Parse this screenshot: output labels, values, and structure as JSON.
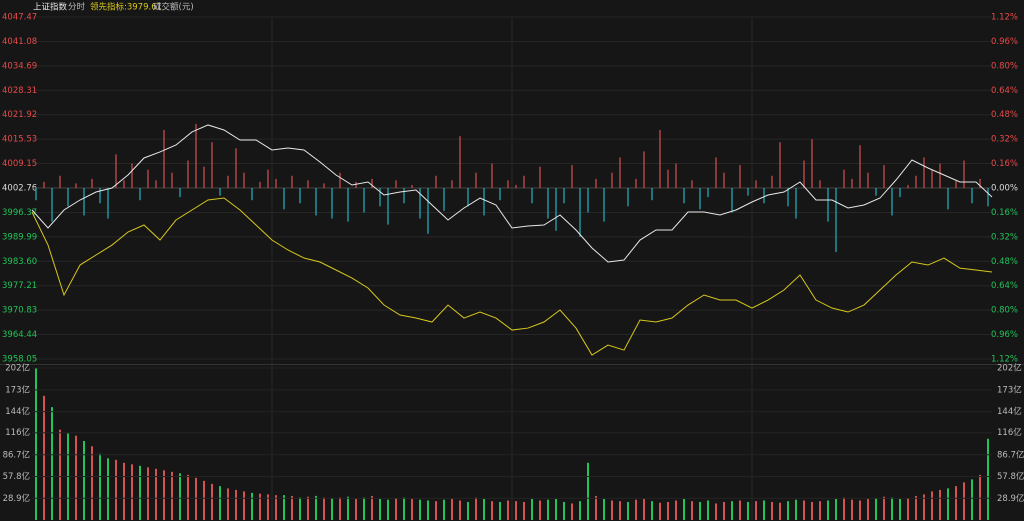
{
  "chart_data": {
    "type": "intraday",
    "header": [
      "上证指数",
      "分时",
      "领先指标:3979.61",
      "成交额(元)"
    ],
    "ylim": [
      3958.05,
      4047.47
    ],
    "yticks": [
      4047.47,
      4041.08,
      4034.69,
      4028.31,
      4021.92,
      4015.53,
      4009.15,
      4002.76,
      3996.37,
      3989.99,
      {
        "value": 3983.6,
        "label": "3983.60"
      },
      3977.21,
      3970.83,
      3964.44,
      3958.05
    ],
    "y2lim": [
      -1.12,
      1.12
    ],
    "y2ticks": [
      {
        "value": 1.12,
        "label": "1.12%"
      },
      {
        "value": 0.96,
        "label": "0.96%"
      },
      {
        "value": 0.8,
        "label": "0.80%"
      },
      {
        "value": 0.64,
        "label": "0.64%"
      },
      {
        "value": 0.48,
        "label": "0.48%"
      },
      {
        "value": 0.32,
        "label": "0.32%"
      },
      {
        "value": 0.16,
        "label": "0.16%"
      },
      {
        "value": 0,
        "label": "0.00%"
      },
      {
        "value": -0.16,
        "label": "0.16%"
      },
      {
        "value": -0.32,
        "label": "0.32%"
      },
      {
        "value": -0.48,
        "label": "0.48%"
      },
      {
        "value": -0.64,
        "label": "0.64%"
      },
      {
        "value": -0.8,
        "label": "0.80%"
      },
      {
        "value": -0.96,
        "label": "0.96%"
      },
      {
        "value": -1.12,
        "label": "1.12%"
      }
    ],
    "up_color": "#e84a4a",
    "down_color": "#22c35a",
    "grid": true,
    "series": [
      {
        "color": "#e8e8e8",
        "values": [
          3997.01,
          3992.3,
          3997.01,
          3999.62,
          4001.71,
          4002.76,
          4006.16,
          4010.61,
          4012.18,
          4014.01,
          4017.41,
          4019.24,
          4017.93,
          4015.31,
          4015.31,
          4012.7,
          4013.22,
          4012.7,
          4009.56,
          4006.16,
          4003.54,
          4004.33,
          4000.93,
          4001.71,
          4002.24,
          3998.31,
          3994.39,
          3997.53,
          4000.14,
          3998.31,
          3992.3,
          3992.82,
          3993.08,
          3995.7,
          3991.78,
          3987.07,
          3983.41,
          3983.93,
          3989.16,
          3991.78,
          3991.78,
          3996.48,
          3996.48,
          3995.7,
          3997.01,
          3999.1,
          4000.93,
          4001.71,
          4004.33,
          3999.62,
          3999.62,
          3997.53,
          3998.31,
          4000.14,
          4004.85,
          4010.08,
          4007.99,
          4006.16,
          4004.33,
          4004.33,
          4000.41
        ]
      },
      {
        "color": "#d8c81c",
        "values": [
          3996.48,
          3987.85,
          3974.78,
          3982.62,
          3985.24,
          3987.85,
          3991.25,
          3993.08,
          3989.16,
          3994.39,
          3997.01,
          3999.62,
          4000.14,
          3997.01,
          3993.08,
          3989.16,
          3986.55,
          3984.45,
          3983.41,
          3981.32,
          3979.22,
          3976.61,
          3972.16,
          3969.55,
          3968.76,
          3967.72,
          3972.16,
          3968.76,
          3970.33,
          3968.76,
          3965.62,
          3966.14,
          3967.72,
          3970.86,
          3966.14,
          3959.08,
          3961.7,
          3960.39,
          3968.24,
          3967.72,
          3968.76,
          3972.16,
          3974.78,
          3973.47,
          3973.47,
          3971.38,
          3973.47,
          3976.09,
          3980.01,
          3973.47,
          3971.38,
          3970.33,
          3972.16,
          3976.09,
          3980.01,
          3983.41,
          3982.62,
          3984.45,
          3981.8,
          3981.32,
          3980.8
        ]
      }
    ],
    "bars": {
      "axis": "y2",
      "up_color": "#d45252",
      "down_color": "#25b4c0",
      "values": [
        -0.08,
        0.04,
        -0.22,
        0.08,
        -0.12,
        0.03,
        -0.18,
        0.06,
        -0.1,
        -0.2,
        0.22,
        0.05,
        0.16,
        -0.08,
        0.12,
        0.05,
        0.38,
        0.1,
        -0.06,
        0.18,
        0.42,
        0.14,
        0.3,
        -0.05,
        0.08,
        0.26,
        0.1,
        -0.08,
        0.04,
        0.12,
        0.06,
        -0.14,
        0.08,
        -0.1,
        0.05,
        -0.18,
        0.03,
        -0.2,
        0.1,
        -0.22,
        0.04,
        -0.16,
        0.06,
        -0.12,
        -0.24,
        0.05,
        -0.1,
        0.02,
        -0.2,
        -0.3,
        0.08,
        -0.15,
        0.05,
        0.34,
        -0.12,
        0.1,
        -0.18,
        0.16,
        -0.08,
        0.05,
        0.02,
        0.08,
        -0.1,
        0.14,
        -0.2,
        -0.28,
        -0.1,
        0.15,
        -0.32,
        -0.16,
        0.06,
        -0.22,
        0.1,
        0.2,
        -0.12,
        0.06,
        0.24,
        -0.08,
        0.38,
        0.12,
        0.16,
        -0.1,
        0.05,
        -0.14,
        -0.06,
        0.2,
        0.1,
        -0.16,
        0.15,
        -0.05,
        0.05,
        -0.1,
        0.08,
        0.3,
        -0.12,
        -0.2,
        0.18,
        0.32,
        0.05,
        -0.22,
        -0.42,
        0.12,
        0.06,
        0.28,
        0.1,
        -0.05,
        0.15,
        -0.18,
        -0.06,
        0.02,
        0.08,
        0.2,
        0.12,
        0.16,
        -0.14,
        0.05,
        0.18,
        -0.1,
        0.06,
        -0.12
      ]
    },
    "volume": {
      "ylim": [
        0,
        202
      ],
      "label_color": "#bbbbbb",
      "yticks": [
        {
          "value": 202,
          "label": "202亿"
        },
        {
          "value": 173,
          "label": "173亿"
        },
        {
          "value": 144,
          "label": "144亿"
        },
        {
          "value": 116,
          "label": "116亿"
        },
        {
          "value": 86.7,
          "label": "86.7亿"
        },
        {
          "value": 57.8,
          "label": "57.8亿"
        },
        {
          "value": 28.9,
          "label": "28.9亿"
        }
      ],
      "values": [
        202,
        165,
        150,
        120,
        115,
        112,
        105,
        98,
        88,
        82,
        80,
        76,
        74,
        72,
        70,
        68,
        66,
        64,
        62,
        60,
        56,
        52,
        48,
        45,
        42,
        40,
        38,
        36,
        35,
        34,
        33,
        33,
        32,
        30,
        31,
        32,
        30,
        29,
        30,
        31,
        28,
        30,
        32,
        28,
        27,
        29,
        30,
        28,
        27,
        26,
        25,
        27,
        28,
        26,
        24,
        30,
        28,
        25,
        24,
        26,
        25,
        24,
        28,
        26,
        27,
        28,
        24,
        22,
        25,
        76,
        32,
        28,
        26,
        25,
        24,
        27,
        28,
        25,
        23,
        24,
        26,
        28,
        25,
        24,
        26,
        22,
        24,
        25,
        26,
        24,
        25,
        26,
        24,
        23,
        25,
        27,
        26,
        24,
        25,
        26,
        28,
        30,
        27,
        26,
        28,
        29,
        31,
        30,
        28,
        29,
        32,
        34,
        38,
        40,
        42,
        45,
        50,
        54,
        60,
        108
      ]
    }
  }
}
